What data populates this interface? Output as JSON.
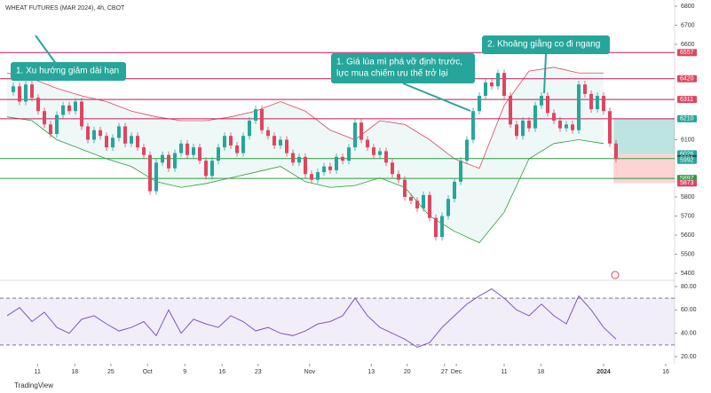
{
  "chart_data": {
    "type": "candlestick",
    "title": "WHEAT FUTURES (MAR 2024), 4h, CBOT",
    "brand": "TradingView",
    "close": [
      6350,
      6380,
      6300,
      6390,
      6320,
      6250,
      6180,
      6130,
      6230,
      6280,
      6250,
      6300,
      6170,
      6100,
      6150,
      6120,
      6060,
      6110,
      6170,
      6080,
      6120,
      6060,
      6020,
      5830,
      5980,
      6020,
      5950,
      6030,
      6080,
      6020,
      6060,
      5990,
      5910,
      5990,
      6060,
      6120,
      6070,
      6030,
      6120,
      6200,
      6260,
      6150,
      6120,
      6070,
      6100,
      6030,
      5980,
      6010,
      5920,
      5890,
      5930,
      5960,
      5940,
      6010,
      5990,
      6060,
      6190,
      6100,
      6060,
      6020,
      6040,
      5980,
      5920,
      5890,
      5800,
      5780,
      5740,
      5810,
      5690,
      5590,
      5700,
      5790,
      5880,
      5990,
      6100,
      6250,
      6330,
      6400,
      6380,
      6450,
      6330,
      6180,
      6120,
      6200,
      6160,
      6280,
      6330,
      6240,
      6200,
      6160,
      6180,
      6150,
      6390,
      6340,
      6260,
      6330,
      6250,
      6080,
      6000
    ],
    "band_upper": [
      6450,
      6420,
      6370,
      6330,
      6300,
      6250,
      6220,
      6200,
      6200,
      6220,
      6250,
      6300,
      6250,
      6150,
      6100,
      6200,
      6180,
      6100,
      6000,
      5950,
      6280,
      6460,
      6480,
      6450,
      6450
    ],
    "band_lower": [
      6220,
      6200,
      6100,
      6050,
      6000,
      5960,
      5880,
      5850,
      5870,
      5900,
      5930,
      5960,
      5880,
      5850,
      5860,
      5900,
      5850,
      5700,
      5620,
      5560,
      5720,
      6000,
      6080,
      6100,
      6080
    ],
    "rsi": [
      55,
      62,
      50,
      58,
      45,
      40,
      52,
      55,
      48,
      42,
      45,
      50,
      38,
      60,
      40,
      52,
      48,
      45,
      55,
      50,
      42,
      45,
      40,
      38,
      42,
      48,
      50,
      55,
      70,
      55,
      45,
      40,
      35,
      28,
      32,
      45,
      55,
      65,
      72,
      78,
      70,
      60,
      55,
      65,
      55,
      48,
      72,
      60,
      45,
      35
    ],
    "ylim": [
      5400,
      6800
    ],
    "yticks": [
      5400,
      5500,
      5600,
      5700,
      5800,
      6100,
      6600,
      6700,
      6800
    ],
    "rsi_lim": [
      20,
      80
    ],
    "rsi_ticks": [
      {
        "value": 20,
        "label": "20.00"
      },
      {
        "value": 40,
        "label": "40.00"
      },
      {
        "value": 60,
        "label": "60.00"
      },
      {
        "value": 80,
        "label": "80.00"
      }
    ],
    "rsi_levels": [
      30,
      70
    ],
    "levels": [
      {
        "value": 6557,
        "color": "#c2185b"
      },
      {
        "value": 6420,
        "color": "#c2185b"
      },
      {
        "value": 6311,
        "color": "#c2185b"
      },
      {
        "value": 6210,
        "color": "#c2185b"
      },
      {
        "value": 6001,
        "color": "#2e9b3a"
      },
      {
        "value": 5897,
        "color": "#2e9b3a"
      }
    ],
    "price_labels": [
      {
        "value": 6557,
        "color": "#e04560"
      },
      {
        "value": 6420,
        "color": "#e04560"
      },
      {
        "value": 6311,
        "color": "#e04560"
      },
      {
        "value": 6210,
        "color": "#26a69a"
      },
      {
        "value": 6026,
        "color": "#26a69a"
      },
      {
        "value": 6001,
        "color": "#1e4d40"
      },
      {
        "value": 5992,
        "color": "#26a69a"
      },
      {
        "value": 5897,
        "color": "#2e9b3a"
      },
      {
        "value": 5873,
        "color": "#e04560"
      }
    ],
    "position": {
      "target": 6210,
      "entry": 6026,
      "stop": 5873,
      "start": 97.6
    },
    "xticks": [
      {
        "value": 4.9,
        "label": "11"
      },
      {
        "value": 10.9,
        "label": "18"
      },
      {
        "value": 16.7,
        "label": "25"
      },
      {
        "value": 22.6,
        "label": "Oct"
      },
      {
        "value": 28.6,
        "label": "9"
      },
      {
        "value": 34.6,
        "label": "16"
      },
      {
        "value": 40.4,
        "label": "23"
      },
      {
        "value": 48.7,
        "label": "Nov"
      },
      {
        "value": 58.6,
        "label": "13"
      },
      {
        "value": 64.4,
        "label": "20"
      },
      {
        "value": 70.4,
        "label": "27"
      },
      {
        "value": 72.3,
        "label": "Dec"
      },
      {
        "value": 80,
        "label": "11"
      },
      {
        "value": 85.9,
        "label": "18"
      },
      {
        "value": 96,
        "label": "2024"
      },
      {
        "value": 106,
        "label": "16"
      }
    ],
    "annotations": [
      {
        "lines": [
          "1. Xu hướng giảm dài hạn"
        ]
      },
      {
        "lines": [
          "1. Giá lúa mì phá vỡ định trước,",
          "lực mua chiếm ưu thế trở lại"
        ]
      },
      {
        "lines": [
          "2. Khoảng giằng co đi ngang"
        ]
      }
    ]
  }
}
